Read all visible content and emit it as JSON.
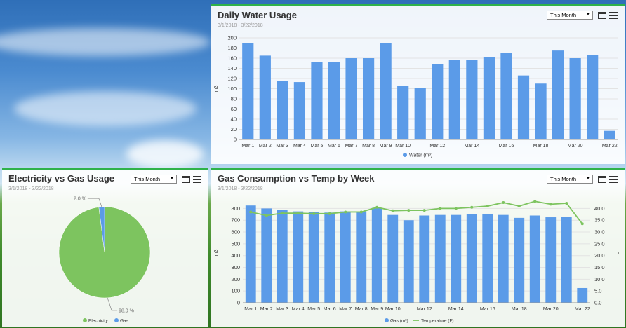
{
  "panels": {
    "water": {
      "title": "Daily Water Usage",
      "date_range": "3/1/2018 - 3/22/2018",
      "select_value": "This Month"
    },
    "elec": {
      "title": "Electricity vs Gas Usage",
      "date_range": "3/1/2018 - 3/22/2018",
      "select_value": "This Month"
    },
    "gas": {
      "title": "Gas Consumption vs Temp by Week",
      "date_range": "3/1/2018 - 3/22/2018",
      "select_value": "This Month"
    }
  },
  "colors": {
    "blue": "#5b9be8",
    "green": "#7dc45f",
    "panel_border": "#2fb24a"
  },
  "icons": [
    "window-icon",
    "menu-icon"
  ],
  "chart_data": [
    {
      "type": "bar",
      "title": "Daily Water Usage",
      "ylabel": "m3",
      "ylim": [
        0,
        200
      ],
      "yticks": [
        0,
        20,
        40,
        60,
        80,
        100,
        120,
        140,
        160,
        180,
        200
      ],
      "categories": [
        "Mar 1",
        "Mar 2",
        "Mar 3",
        "Mar 4",
        "Mar 5",
        "Mar 6",
        "Mar 7",
        "Mar 8",
        "Mar 9",
        "Mar 10",
        "Mar 11",
        "Mar 12",
        "Mar 13",
        "Mar 14",
        "Mar 15",
        "Mar 16",
        "Mar 17",
        "Mar 18",
        "Mar 19",
        "Mar 20",
        "Mar 21",
        "Mar 22"
      ],
      "xtick_labels": [
        "Mar 1",
        "Mar 2",
        "Mar 3",
        "Mar 4",
        "Mar 5",
        "Mar 6",
        "Mar 7",
        "Mar 8",
        "Mar 9",
        "Mar 10",
        "",
        "Mar 12",
        "",
        "Mar 14",
        "",
        "Mar 16",
        "",
        "Mar 18",
        "",
        "Mar 20",
        "",
        "Mar 22"
      ],
      "series": [
        {
          "name": "Water (m³)",
          "values": [
            190,
            165,
            115,
            113,
            152,
            152,
            160,
            160,
            190,
            106,
            102,
            148,
            157,
            157,
            162,
            170,
            126,
            110,
            175,
            160,
            166,
            17
          ]
        }
      ],
      "legend": "bottom"
    },
    {
      "type": "pie",
      "title": "Electricity vs Gas Usage",
      "slices": [
        {
          "name": "Electricity",
          "value": 98.0,
          "label": "98.0 %",
          "color": "#7dc45f"
        },
        {
          "name": "Gas",
          "value": 2.0,
          "label": "2.0 %",
          "color": "#5b9be8"
        }
      ],
      "legend": "bottom"
    },
    {
      "type": "bar",
      "title": "Gas Consumption vs Temp by Week",
      "ylabel": "m3",
      "y2label": "F",
      "ylim": [
        0,
        850
      ],
      "yticks": [
        0,
        100,
        200,
        300,
        400,
        500,
        600,
        700,
        800
      ],
      "y2lim": [
        0,
        42.5
      ],
      "y2ticks": [
        "0.0",
        "5.0",
        "10.0",
        "15.0",
        "20.0",
        "25.0",
        "30.0",
        "35.0",
        "40.0"
      ],
      "categories": [
        "Mar 1",
        "Mar 2",
        "Mar 3",
        "Mar 4",
        "Mar 5",
        "Mar 6",
        "Mar 7",
        "Mar 8",
        "Mar 9",
        "Mar 10",
        "Mar 11",
        "Mar 12",
        "Mar 13",
        "Mar 14",
        "Mar 15",
        "Mar 16",
        "Mar 17",
        "Mar 18",
        "Mar 19",
        "Mar 20",
        "Mar 21",
        "Mar 22"
      ],
      "xtick_labels": [
        "Mar 1",
        "Mar 2",
        "Mar 3",
        "Mar 4",
        "Mar 5",
        "Mar 6",
        "Mar 7",
        "Mar 8",
        "Mar 9",
        "Mar 10",
        "",
        "Mar 12",
        "",
        "Mar 14",
        "",
        "Mar 16",
        "",
        "Mar 18",
        "",
        "Mar 20",
        "",
        "Mar 22"
      ],
      "series": [
        {
          "name": "Gas (m³)",
          "type": "bar",
          "values": [
            825,
            800,
            785,
            775,
            770,
            765,
            775,
            775,
            805,
            745,
            700,
            740,
            745,
            745,
            750,
            755,
            745,
            720,
            740,
            725,
            730,
            125
          ]
        },
        {
          "name": "Temperature (F)",
          "type": "line",
          "values": [
            38.5,
            37.0,
            38.0,
            38.0,
            37.8,
            37.8,
            38.5,
            38.5,
            40.5,
            39.0,
            39.2,
            39.2,
            40.0,
            40.0,
            40.5,
            41.0,
            42.5,
            41.0,
            43.0,
            41.8,
            42.2,
            33.5
          ]
        }
      ],
      "legend": "bottom"
    }
  ]
}
